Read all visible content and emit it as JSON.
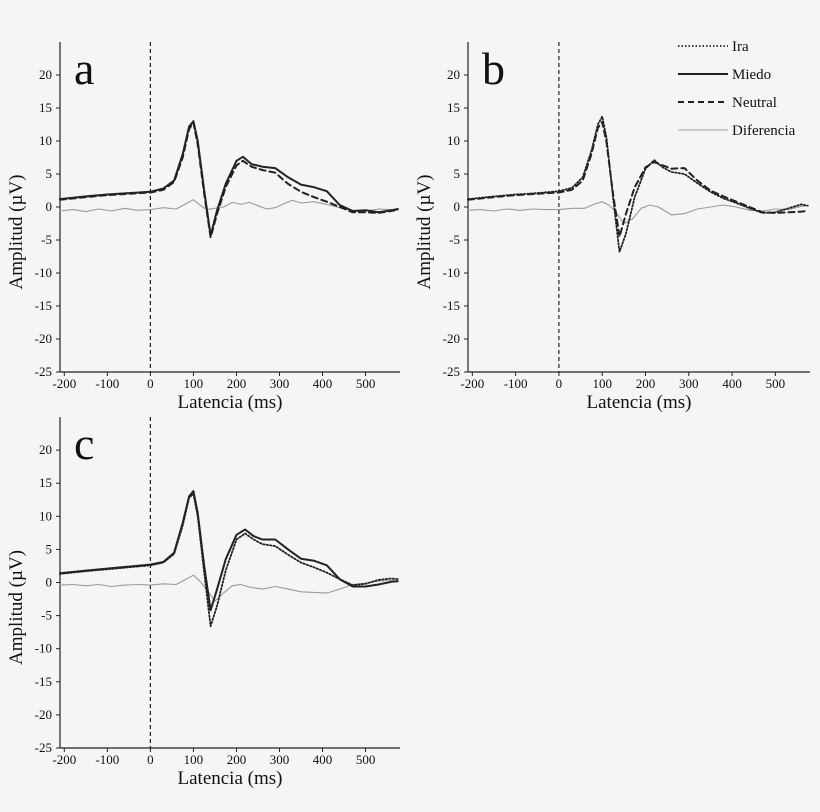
{
  "colors": {
    "background": "#f5f5f5",
    "ink": "#222222",
    "diferencia": "#9a9a9a"
  },
  "legend": [
    {
      "key": "ira",
      "label": "Ira",
      "style": "dotted"
    },
    {
      "key": "miedo",
      "label": "Miedo",
      "style": "solid"
    },
    {
      "key": "neutral",
      "label": "Neutral",
      "style": "dashed"
    },
    {
      "key": "diferencia",
      "label": "Diferencia",
      "style": "thin-grey"
    }
  ],
  "chart_data": [
    {
      "panel": "a",
      "type": "line",
      "xlabel": "Latencia (ms)",
      "ylabel": "Amplitud (µV)",
      "xlim": [
        -210,
        580
      ],
      "ylim": [
        -25,
        25
      ],
      "xticks": [
        -200,
        -100,
        0,
        100,
        200,
        300,
        400,
        500
      ],
      "yticks": [
        20,
        15,
        10,
        5,
        0,
        -5,
        -10,
        -15,
        -20,
        -25
      ],
      "series": [
        {
          "name": "Miedo",
          "key": "miedo",
          "x": [
            -210,
            -150,
            -100,
            -50,
            0,
            30,
            55,
            75,
            90,
            100,
            110,
            125,
            140,
            155,
            175,
            200,
            215,
            235,
            260,
            290,
            320,
            350,
            380,
            410,
            440,
            470,
            500,
            530,
            560,
            575
          ],
          "y": [
            1.2,
            1.6,
            1.9,
            2.1,
            2.3,
            2.8,
            4.0,
            8.0,
            12.2,
            13.0,
            10.0,
            2.5,
            -4.3,
            -0.5,
            3.5,
            7.0,
            7.6,
            6.5,
            6.1,
            5.9,
            4.5,
            3.4,
            3.0,
            2.4,
            0.3,
            -0.6,
            -0.5,
            -0.8,
            -0.5,
            -0.3
          ]
        },
        {
          "name": "Neutral",
          "key": "neutral",
          "x": [
            -210,
            -150,
            -100,
            -50,
            0,
            30,
            55,
            75,
            90,
            100,
            110,
            125,
            140,
            155,
            175,
            200,
            215,
            235,
            260,
            290,
            320,
            350,
            380,
            410,
            440,
            470,
            500,
            530,
            560,
            575
          ],
          "y": [
            1.1,
            1.5,
            1.8,
            2.0,
            2.2,
            2.6,
            3.8,
            7.5,
            11.8,
            12.8,
            9.5,
            2.0,
            -4.6,
            -1.0,
            3.0,
            6.3,
            7.0,
            6.1,
            5.6,
            5.2,
            3.5,
            2.3,
            1.5,
            0.8,
            0.0,
            -0.8,
            -0.8,
            -0.9,
            -0.6,
            -0.4
          ]
        },
        {
          "name": "Diferencia",
          "key": "diferencia",
          "x": [
            -210,
            -180,
            -150,
            -120,
            -90,
            -60,
            -30,
            0,
            30,
            60,
            80,
            100,
            115,
            130,
            150,
            170,
            190,
            210,
            230,
            250,
            270,
            290,
            310,
            330,
            350,
            380,
            410,
            440,
            470,
            500,
            530,
            560,
            575
          ],
          "y": [
            -0.6,
            -0.4,
            -0.7,
            -0.3,
            -0.6,
            -0.2,
            -0.5,
            -0.4,
            -0.1,
            -0.3,
            0.4,
            1.1,
            0.3,
            -0.4,
            -0.2,
            0.0,
            0.7,
            0.4,
            0.7,
            0.2,
            -0.3,
            -0.1,
            0.5,
            1.0,
            0.6,
            0.8,
            0.4,
            -0.1,
            -0.5,
            -0.6,
            -0.3,
            -0.4,
            -0.5
          ]
        }
      ]
    },
    {
      "panel": "b",
      "type": "line",
      "xlabel": "Latencia (ms)",
      "ylabel": "Amplitud (µV)",
      "xlim": [
        -210,
        580
      ],
      "ylim": [
        -25,
        25
      ],
      "xticks": [
        -200,
        -100,
        0,
        100,
        200,
        300,
        400,
        500
      ],
      "yticks": [
        20,
        15,
        10,
        5,
        0,
        -5,
        -10,
        -15,
        -20,
        -25
      ],
      "series": [
        {
          "name": "Ira",
          "key": "ira",
          "x": [
            -210,
            -150,
            -100,
            -50,
            0,
            30,
            55,
            75,
            90,
            100,
            110,
            125,
            140,
            155,
            175,
            200,
            220,
            240,
            260,
            290,
            320,
            350,
            380,
            410,
            440,
            470,
            500,
            530,
            560,
            575
          ],
          "y": [
            1.2,
            1.6,
            1.9,
            2.1,
            2.4,
            2.9,
            4.5,
            8.5,
            12.5,
            13.7,
            10.5,
            1.5,
            -6.8,
            -4.0,
            1.5,
            5.8,
            7.1,
            6.0,
            5.3,
            5.0,
            3.6,
            2.3,
            1.3,
            0.6,
            -0.2,
            -0.9,
            -0.8,
            -0.2,
            0.4,
            0.2
          ]
        },
        {
          "name": "Neutral",
          "key": "neutral",
          "x": [
            -210,
            -150,
            -100,
            -50,
            0,
            30,
            55,
            75,
            90,
            100,
            110,
            125,
            140,
            155,
            175,
            200,
            220,
            240,
            260,
            290,
            320,
            350,
            380,
            410,
            440,
            470,
            500,
            530,
            560,
            575
          ],
          "y": [
            1.1,
            1.5,
            1.8,
            2.0,
            2.2,
            2.6,
            4.0,
            8.0,
            12.0,
            12.9,
            9.8,
            2.0,
            -4.5,
            -1.0,
            3.0,
            6.0,
            6.8,
            6.3,
            5.8,
            5.9,
            4.0,
            2.5,
            1.6,
            0.8,
            0.0,
            -0.8,
            -0.9,
            -0.8,
            -0.7,
            -0.6
          ]
        },
        {
          "name": "Diferencia",
          "key": "diferencia",
          "x": [
            -210,
            -180,
            -150,
            -120,
            -90,
            -60,
            -30,
            0,
            30,
            60,
            80,
            100,
            115,
            130,
            150,
            170,
            190,
            210,
            230,
            260,
            290,
            320,
            350,
            380,
            410,
            440,
            470,
            500,
            530,
            560,
            575
          ],
          "y": [
            -0.5,
            -0.4,
            -0.6,
            -0.3,
            -0.5,
            -0.3,
            -0.4,
            -0.4,
            -0.2,
            -0.2,
            0.4,
            0.8,
            0.3,
            -0.6,
            -2.5,
            -1.8,
            -0.2,
            0.3,
            0.0,
            -1.2,
            -1.0,
            -0.3,
            0.0,
            0.3,
            0.0,
            -0.5,
            -0.6,
            -0.3,
            -0.4,
            0.1,
            0.2
          ]
        }
      ]
    },
    {
      "panel": "c",
      "type": "line",
      "xlabel": "Latencia (ms)",
      "ylabel": "Amplitud (µV)",
      "xlim": [
        -210,
        580
      ],
      "ylim": [
        -25,
        25
      ],
      "xticks": [
        -200,
        -100,
        0,
        100,
        200,
        300,
        400,
        500
      ],
      "yticks": [
        20,
        15,
        10,
        5,
        0,
        -5,
        -10,
        -15,
        -20,
        -25
      ],
      "series": [
        {
          "name": "Miedo",
          "key": "miedo",
          "x": [
            -210,
            -150,
            -100,
            -50,
            0,
            30,
            55,
            75,
            90,
            100,
            110,
            125,
            140,
            155,
            175,
            200,
            220,
            240,
            260,
            290,
            320,
            350,
            380,
            410,
            440,
            470,
            500,
            530,
            560,
            575
          ],
          "y": [
            1.4,
            1.8,
            2.1,
            2.4,
            2.7,
            3.1,
            4.5,
            9.0,
            13.0,
            13.8,
            10.5,
            2.5,
            -4.2,
            -1.0,
            3.5,
            7.2,
            8.0,
            7.0,
            6.5,
            6.5,
            5.0,
            3.6,
            3.3,
            2.6,
            0.5,
            -0.6,
            -0.6,
            -0.3,
            0.1,
            0.2
          ]
        },
        {
          "name": "Ira",
          "key": "ira",
          "x": [
            -210,
            -150,
            -100,
            -50,
            0,
            30,
            55,
            75,
            90,
            100,
            110,
            125,
            140,
            155,
            175,
            200,
            220,
            240,
            260,
            290,
            320,
            350,
            380,
            410,
            440,
            470,
            500,
            530,
            560,
            575
          ],
          "y": [
            1.3,
            1.7,
            2.0,
            2.3,
            2.6,
            3.0,
            4.3,
            8.6,
            12.8,
            13.4,
            10.0,
            1.5,
            -6.6,
            -3.5,
            1.8,
            6.5,
            7.4,
            6.5,
            5.8,
            5.5,
            4.2,
            3.0,
            2.3,
            1.5,
            0.5,
            -0.4,
            -0.2,
            0.4,
            0.6,
            0.5
          ]
        },
        {
          "name": "Diferencia",
          "key": "diferencia",
          "x": [
            -210,
            -180,
            -150,
            -120,
            -90,
            -60,
            -30,
            0,
            30,
            60,
            80,
            100,
            115,
            130,
            150,
            170,
            190,
            210,
            230,
            260,
            290,
            320,
            350,
            380,
            410,
            440,
            470,
            500,
            530,
            560,
            575
          ],
          "y": [
            -0.4,
            -0.3,
            -0.5,
            -0.3,
            -0.6,
            -0.4,
            -0.3,
            -0.4,
            -0.2,
            -0.3,
            0.4,
            1.1,
            0.2,
            -1.0,
            -2.8,
            -1.6,
            -0.5,
            -0.3,
            -0.7,
            -1.0,
            -0.6,
            -1.0,
            -1.4,
            -1.5,
            -1.6,
            -1.0,
            -0.3,
            -0.1,
            0.2,
            0.3,
            0.2
          ]
        }
      ]
    }
  ]
}
